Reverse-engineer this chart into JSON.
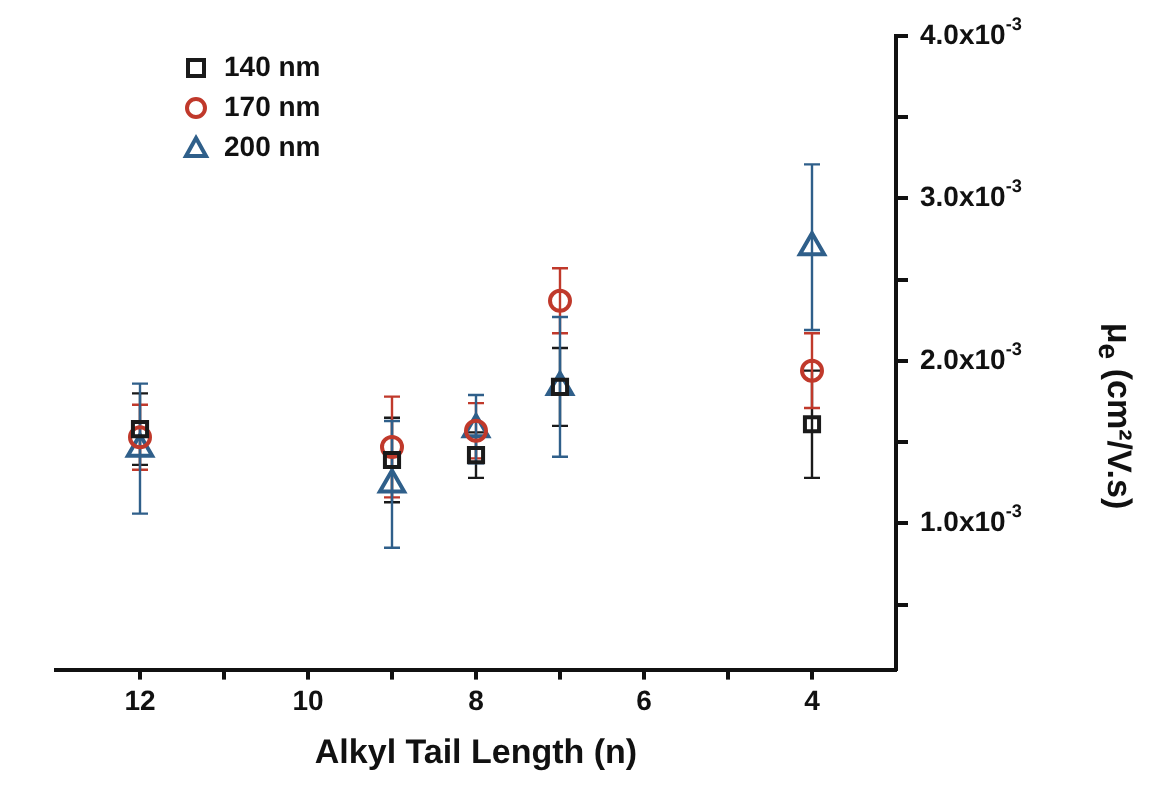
{
  "chart_data": {
    "type": "scatter",
    "xlabel": "Alkyl Tail Length (n)",
    "ylabel": "μ$_{e}$ (cm²/V.s)",
    "xlim": [
      13,
      3
    ],
    "xticks": [
      12,
      {
        "value": 11,
        "label": null
      },
      10,
      {
        "value": 9,
        "label": null
      },
      8,
      {
        "value": 7,
        "label": null
      },
      6,
      {
        "value": 5,
        "label": null
      },
      4
    ],
    "ylim": [
      0.0001,
      0.004
    ],
    "yticks": [
      {
        "value": 0.0005,
        "label": null
      },
      {
        "value": 0.001,
        "label": "1.0x10$^{-3}$"
      },
      {
        "value": 0.0015,
        "label": null
      },
      {
        "value": 0.002,
        "label": "2.0x10$^{-3}$"
      },
      {
        "value": 0.0025,
        "label": null
      },
      {
        "value": 0.003,
        "label": "3.0x10$^{-3}$"
      },
      {
        "value": 0.0035,
        "label": null
      },
      {
        "value": 0.004,
        "label": "4.0x10$^{-3}$"
      }
    ],
    "x": [
      12,
      9,
      8,
      7,
      4
    ],
    "legend": "top left",
    "grid": false,
    "series": [
      {
        "name": "140 nm",
        "color": "#1a1a1a",
        "marker": "square",
        "values": [
          0.00158,
          0.00139,
          0.00142,
          0.00184,
          0.00161
        ],
        "errors": [
          0.00022,
          0.00026,
          0.00014,
          0.00024,
          0.00033
        ]
      },
      {
        "name": "170 nm",
        "color": "#c0392b",
        "marker": "circle",
        "values": [
          0.00153,
          0.00147,
          0.00157,
          0.00237,
          0.00194
        ],
        "errors": [
          0.0002,
          0.00031,
          0.00017,
          0.0002,
          0.00023
        ]
      },
      {
        "name": "200 nm",
        "color": "#2f5f8a",
        "marker": "triangle",
        "values": [
          0.00146,
          0.00124,
          0.00158,
          0.00184,
          0.0027
        ],
        "errors": [
          0.0004,
          0.00039,
          0.00021,
          0.00043,
          0.00051
        ]
      }
    ]
  }
}
